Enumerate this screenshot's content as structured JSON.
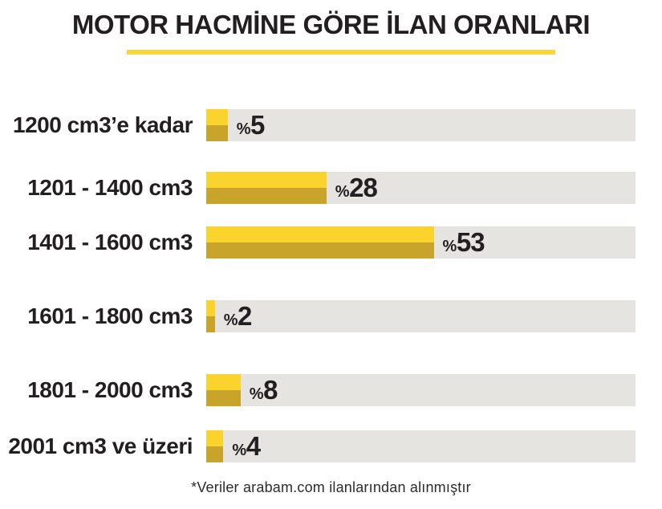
{
  "title": "MOTOR HACMİNE GÖRE İLAN ORANLARI",
  "footer_note": "*Veriler arabam.com ilanlarından alınmıştır",
  "colors": {
    "bar_top": "#FBD32D",
    "bar_bottom": "#C9A42B",
    "track": "#E5E4E1",
    "underline": "#F9D53F",
    "text": "#231F20"
  },
  "chart_data": {
    "type": "bar",
    "orientation": "horizontal",
    "title": "MOTOR HACMİNE GÖRE İLAN ORANLARI",
    "categories": [
      "1200 cm3’e kadar",
      "1201 - 1400 cm3",
      "1401 - 1600 cm3",
      "1601 - 1800 cm3",
      "1801 - 2000 cm3",
      "2001 cm3 ve üzeri"
    ],
    "values": [
      5,
      28,
      53,
      2,
      8,
      4
    ],
    "value_prefix": "%",
    "xlim": [
      0,
      100
    ],
    "unit": "percent",
    "grid": false,
    "legend": false,
    "source_note": "*Veriler arabam.com ilanlarından alınmıştır"
  }
}
